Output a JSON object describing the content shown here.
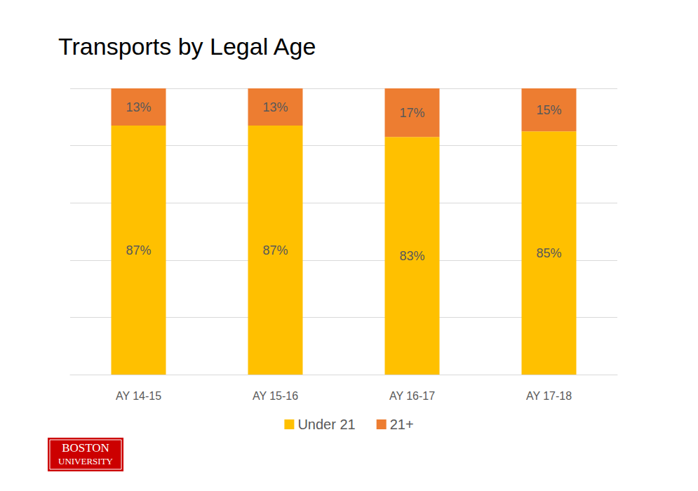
{
  "chart_data": {
    "type": "bar",
    "title": "Transports by Legal Age",
    "categories": [
      "AY 14-15",
      "AY 15-16",
      "AY 16-17",
      "AY 17-18"
    ],
    "series": [
      {
        "name": "Under 21",
        "color": "#ffc000",
        "values": [
          87,
          87,
          83,
          85
        ],
        "value_labels": [
          "87%",
          "87%",
          "83%",
          "85%"
        ]
      },
      {
        "name": "21+",
        "color": "#ed7d31",
        "values": [
          13,
          13,
          17,
          15
        ],
        "value_labels": [
          "13%",
          "13%",
          "17%",
          "15%"
        ]
      }
    ],
    "ylim": [
      0,
      100
    ],
    "yticks": [
      0,
      20,
      40,
      60,
      80,
      100
    ],
    "stacked": true,
    "data_labels": true,
    "grid": true,
    "legend": "bottom",
    "tick_labels": "x",
    "annotations": [
      "BOSTON",
      "UNIVERSITY"
    ]
  }
}
